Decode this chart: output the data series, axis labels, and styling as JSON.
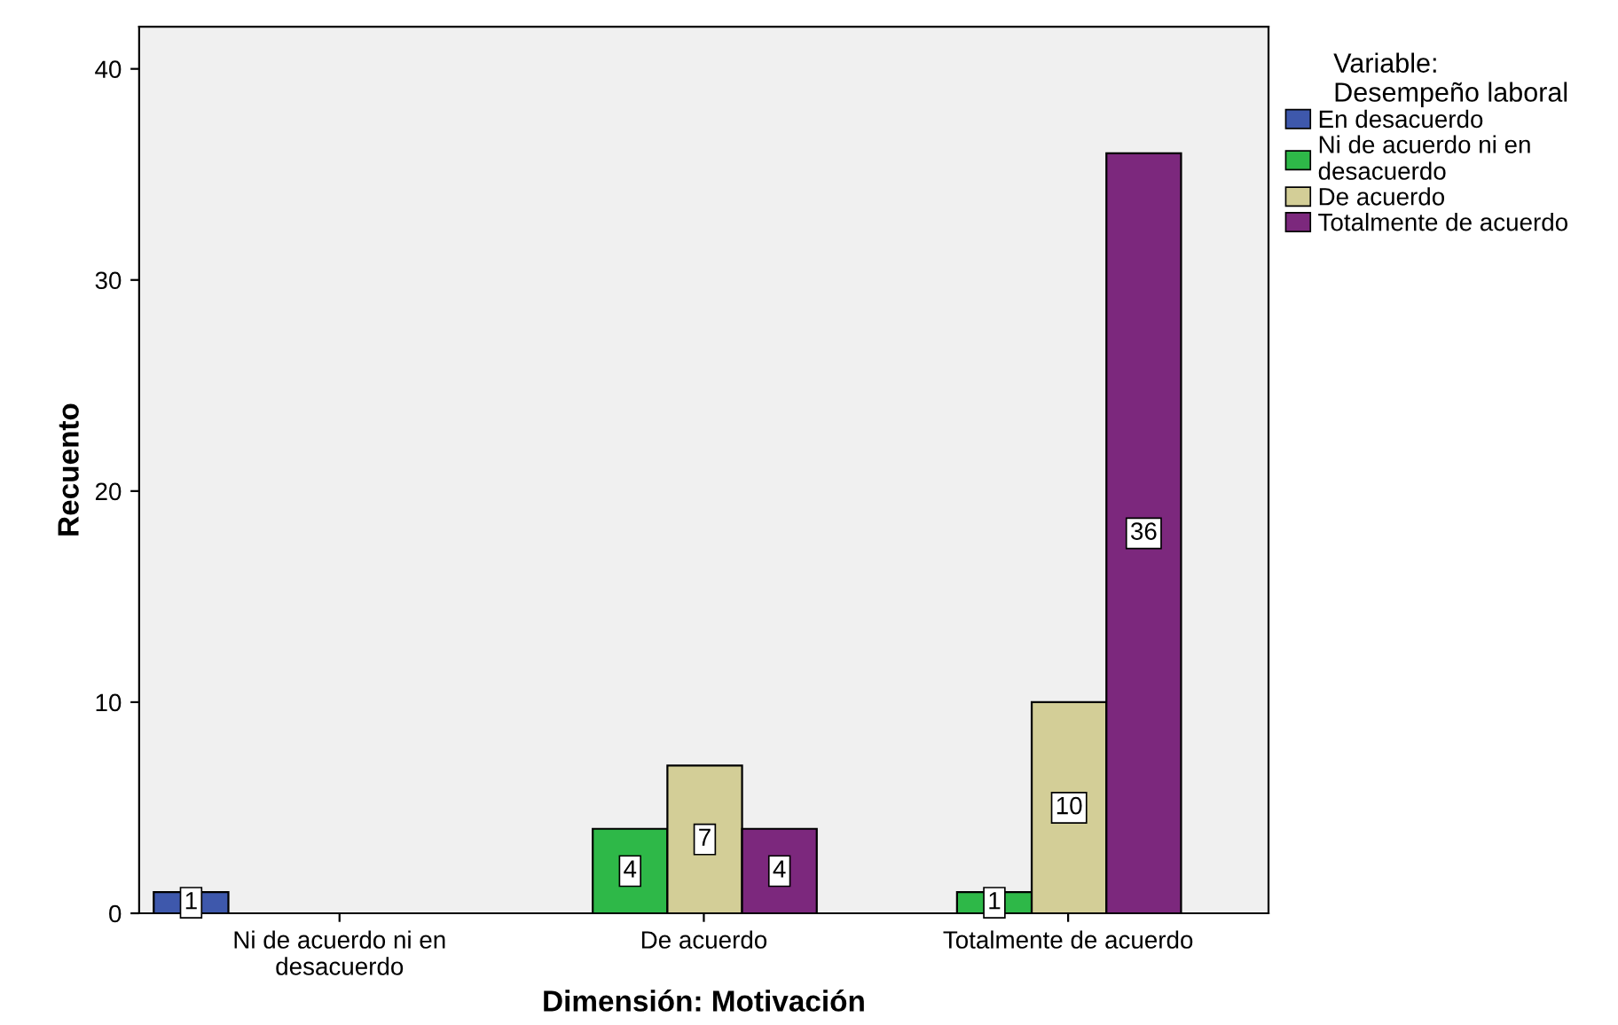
{
  "chart_data": {
    "type": "bar",
    "xlabel": "Dimensión: Motivación",
    "ylabel": "Recuento",
    "legend_title": "Variable:\nDesempeño laboral",
    "categories": [
      "Ni de acuerdo ni en\ndesacuerdo",
      "De acuerdo",
      "Totalmente de acuerdo"
    ],
    "series": [
      {
        "name": "En desacuerdo",
        "color": "#3e58ac",
        "values": [
          1,
          null,
          null
        ]
      },
      {
        "name": "Ni de acuerdo ni en\ndesacuerdo",
        "color": "#2eb848",
        "values": [
          null,
          4,
          1
        ]
      },
      {
        "name": "De acuerdo",
        "color": "#d3ce97",
        "values": [
          null,
          7,
          10
        ]
      },
      {
        "name": "Totalmente de acuerdo",
        "color": "#7c287d",
        "values": [
          null,
          4,
          36
        ]
      }
    ],
    "ylim": [
      0,
      42
    ],
    "yticks": [
      0,
      10,
      20,
      30,
      40
    ],
    "grid": false,
    "legend": "right",
    "data_labels": true
  }
}
